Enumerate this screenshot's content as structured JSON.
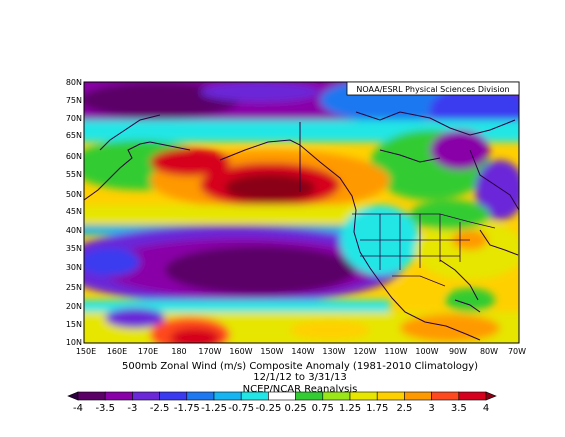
{
  "map": {
    "credit": "NOAA/ESRL Physical Sciences Division",
    "lat_labels": [
      "80N",
      "75N",
      "70N",
      "65N",
      "60N",
      "55N",
      "50N",
      "45N",
      "40N",
      "35N",
      "30N",
      "25N",
      "20N",
      "15N",
      "10N"
    ],
    "lon_labels": [
      "150E",
      "160E",
      "170E",
      "180",
      "170W",
      "160W",
      "150W",
      "140W",
      "130W",
      "120W",
      "110W",
      "100W",
      "90W",
      "80W",
      "70W"
    ],
    "caption_line1": "500mb Zonal Wind (m/s) Composite Anomaly (1981-2010 Climatology)",
    "caption_line2": "12/1/12  to 3/31/13",
    "caption_line3": "NCEP/NCAR Reanalysis"
  },
  "colorbar": {
    "labels": [
      "-4",
      "-3.5",
      "-3",
      "-2.5",
      "-1.75",
      "-1.25",
      "-0.75",
      "-0.25",
      "0.25",
      "0.75",
      "1.25",
      "1.75",
      "2.5",
      "3",
      "3.5",
      "4"
    ],
    "colors": [
      "#2d0040",
      "#5a0066",
      "#8a00a8",
      "#6a28d8",
      "#3a3af0",
      "#1e78f0",
      "#16b4f0",
      "#22e6e6",
      "#ffffff",
      "#33cc33",
      "#99e619",
      "#e6e600",
      "#ffd000",
      "#ff9900",
      "#ff4a1f",
      "#d6001e",
      "#8a0014"
    ]
  }
}
